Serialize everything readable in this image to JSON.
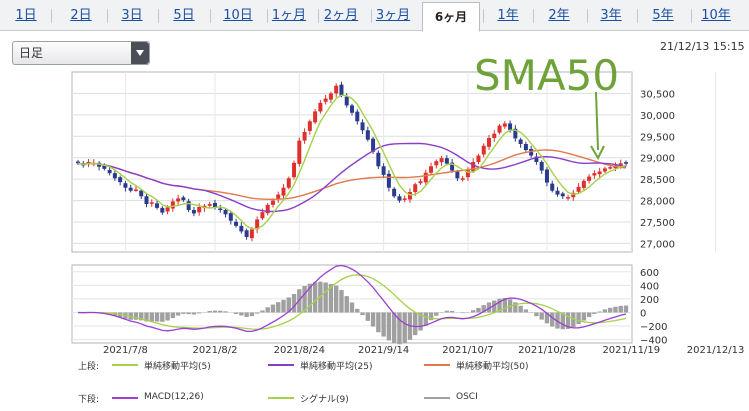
{
  "tabs": [
    {
      "label": "1日",
      "active": false
    },
    {
      "label": "2日",
      "active": false
    },
    {
      "label": "3日",
      "active": false
    },
    {
      "label": "5日",
      "active": false
    },
    {
      "label": "10日",
      "active": false
    },
    {
      "label": "1ヶ月",
      "active": false
    },
    {
      "label": "2ヶ月",
      "active": false
    },
    {
      "label": "3ヶ月",
      "active": false
    },
    {
      "label": "6ヶ月",
      "active": true
    },
    {
      "label": "1年",
      "active": false
    },
    {
      "label": "2年",
      "active": false
    },
    {
      "label": "3年",
      "active": false
    },
    {
      "label": "5年",
      "active": false
    },
    {
      "label": "10年",
      "active": false
    }
  ],
  "selector": {
    "value": "日足"
  },
  "timestamp": "21/12/13 15:15",
  "annotation": "SMA50",
  "colors": {
    "up": "#e0302e",
    "down": "#2a3a8c",
    "sma5": "#a6d24a",
    "sma25": "#8a3ec8",
    "sma50": "#e07a4a",
    "macd": "#9a3fd0",
    "signal": "#a6d24a",
    "osci": "#a0a0a0",
    "annotation": "#6fa33a"
  },
  "legend": {
    "upper_label": "上段:",
    "lower_label": "下段:",
    "upper": [
      {
        "name": "単純移動平均(5)",
        "color": "#a6d24a"
      },
      {
        "name": "単純移動平均(25)",
        "color": "#8a3ec8"
      },
      {
        "name": "単純移動平均(50)",
        "color": "#e07a4a"
      }
    ],
    "lower": [
      {
        "name": "MACD(12,26)",
        "color": "#9a3fd0"
      },
      {
        "name": "シグナル(9)",
        "color": "#a6d24a"
      },
      {
        "name": "OSCI",
        "color": "#a0a0a0"
      }
    ]
  },
  "chart_data": [
    {
      "type": "candlestick",
      "title": "",
      "ylim": [
        26800,
        31000
      ],
      "yticks": [
        27000,
        27500,
        28000,
        28500,
        29000,
        29500,
        30000,
        30500
      ],
      "ytick_labels": [
        "27,000",
        "27,500",
        "28,000",
        "28,500",
        "29,000",
        "29,500",
        "30,000",
        "30,500"
      ],
      "x_labels": [
        "2021/7/8",
        "2021/8/2",
        "2021/8/24",
        "2021/9/14",
        "2021/10/7",
        "2021/10/28",
        "2021/11/19",
        "2021/12/13"
      ],
      "x_label_index": [
        9,
        26,
        42,
        58,
        74,
        89,
        105,
        121
      ],
      "close": [
        28870,
        28820,
        28900,
        28880,
        28790,
        28740,
        28640,
        28520,
        28430,
        28300,
        28230,
        28260,
        28100,
        27920,
        27960,
        27830,
        27720,
        27840,
        27980,
        28050,
        28010,
        27780,
        27700,
        27850,
        27880,
        27920,
        27840,
        27780,
        27680,
        27530,
        27410,
        27280,
        27150,
        27330,
        27560,
        27730,
        27900,
        28000,
        28140,
        28300,
        28520,
        28880,
        29400,
        29600,
        29850,
        30080,
        30280,
        30380,
        30500,
        30680,
        30450,
        30220,
        30050,
        29850,
        29640,
        29420,
        29140,
        28800,
        28600,
        28300,
        28100,
        28000,
        28050,
        28200,
        28380,
        28450,
        28650,
        28800,
        28920,
        28990,
        28860,
        28700,
        28520,
        28520,
        28710,
        28900,
        29050,
        29280,
        29460,
        29560,
        29750,
        29800,
        29650,
        29450,
        29320,
        29180,
        29050,
        28900,
        28700,
        28420,
        28230,
        28140,
        28100,
        28080,
        28180,
        28320,
        28460,
        28560,
        28640,
        28680,
        28750,
        28780,
        28820,
        28870,
        28880
      ],
      "sma_period_note": "5,25,50",
      "series": [
        {
          "name": "単純移動平均(5)"
        },
        {
          "name": "単純移動平均(25)"
        },
        {
          "name": "単純移動平均(50)"
        }
      ]
    },
    {
      "type": "line",
      "title": "",
      "ylim": [
        -450,
        700
      ],
      "yticks": [
        600,
        400,
        200,
        0,
        -200,
        -400
      ],
      "ytick_labels": [
        "600",
        "400",
        "200",
        "0",
        "−200",
        "−400"
      ],
      "series": [
        {
          "name": "MACD(12,26)"
        },
        {
          "name": "シグナル(9)"
        },
        {
          "name": "OSCI"
        }
      ]
    }
  ]
}
